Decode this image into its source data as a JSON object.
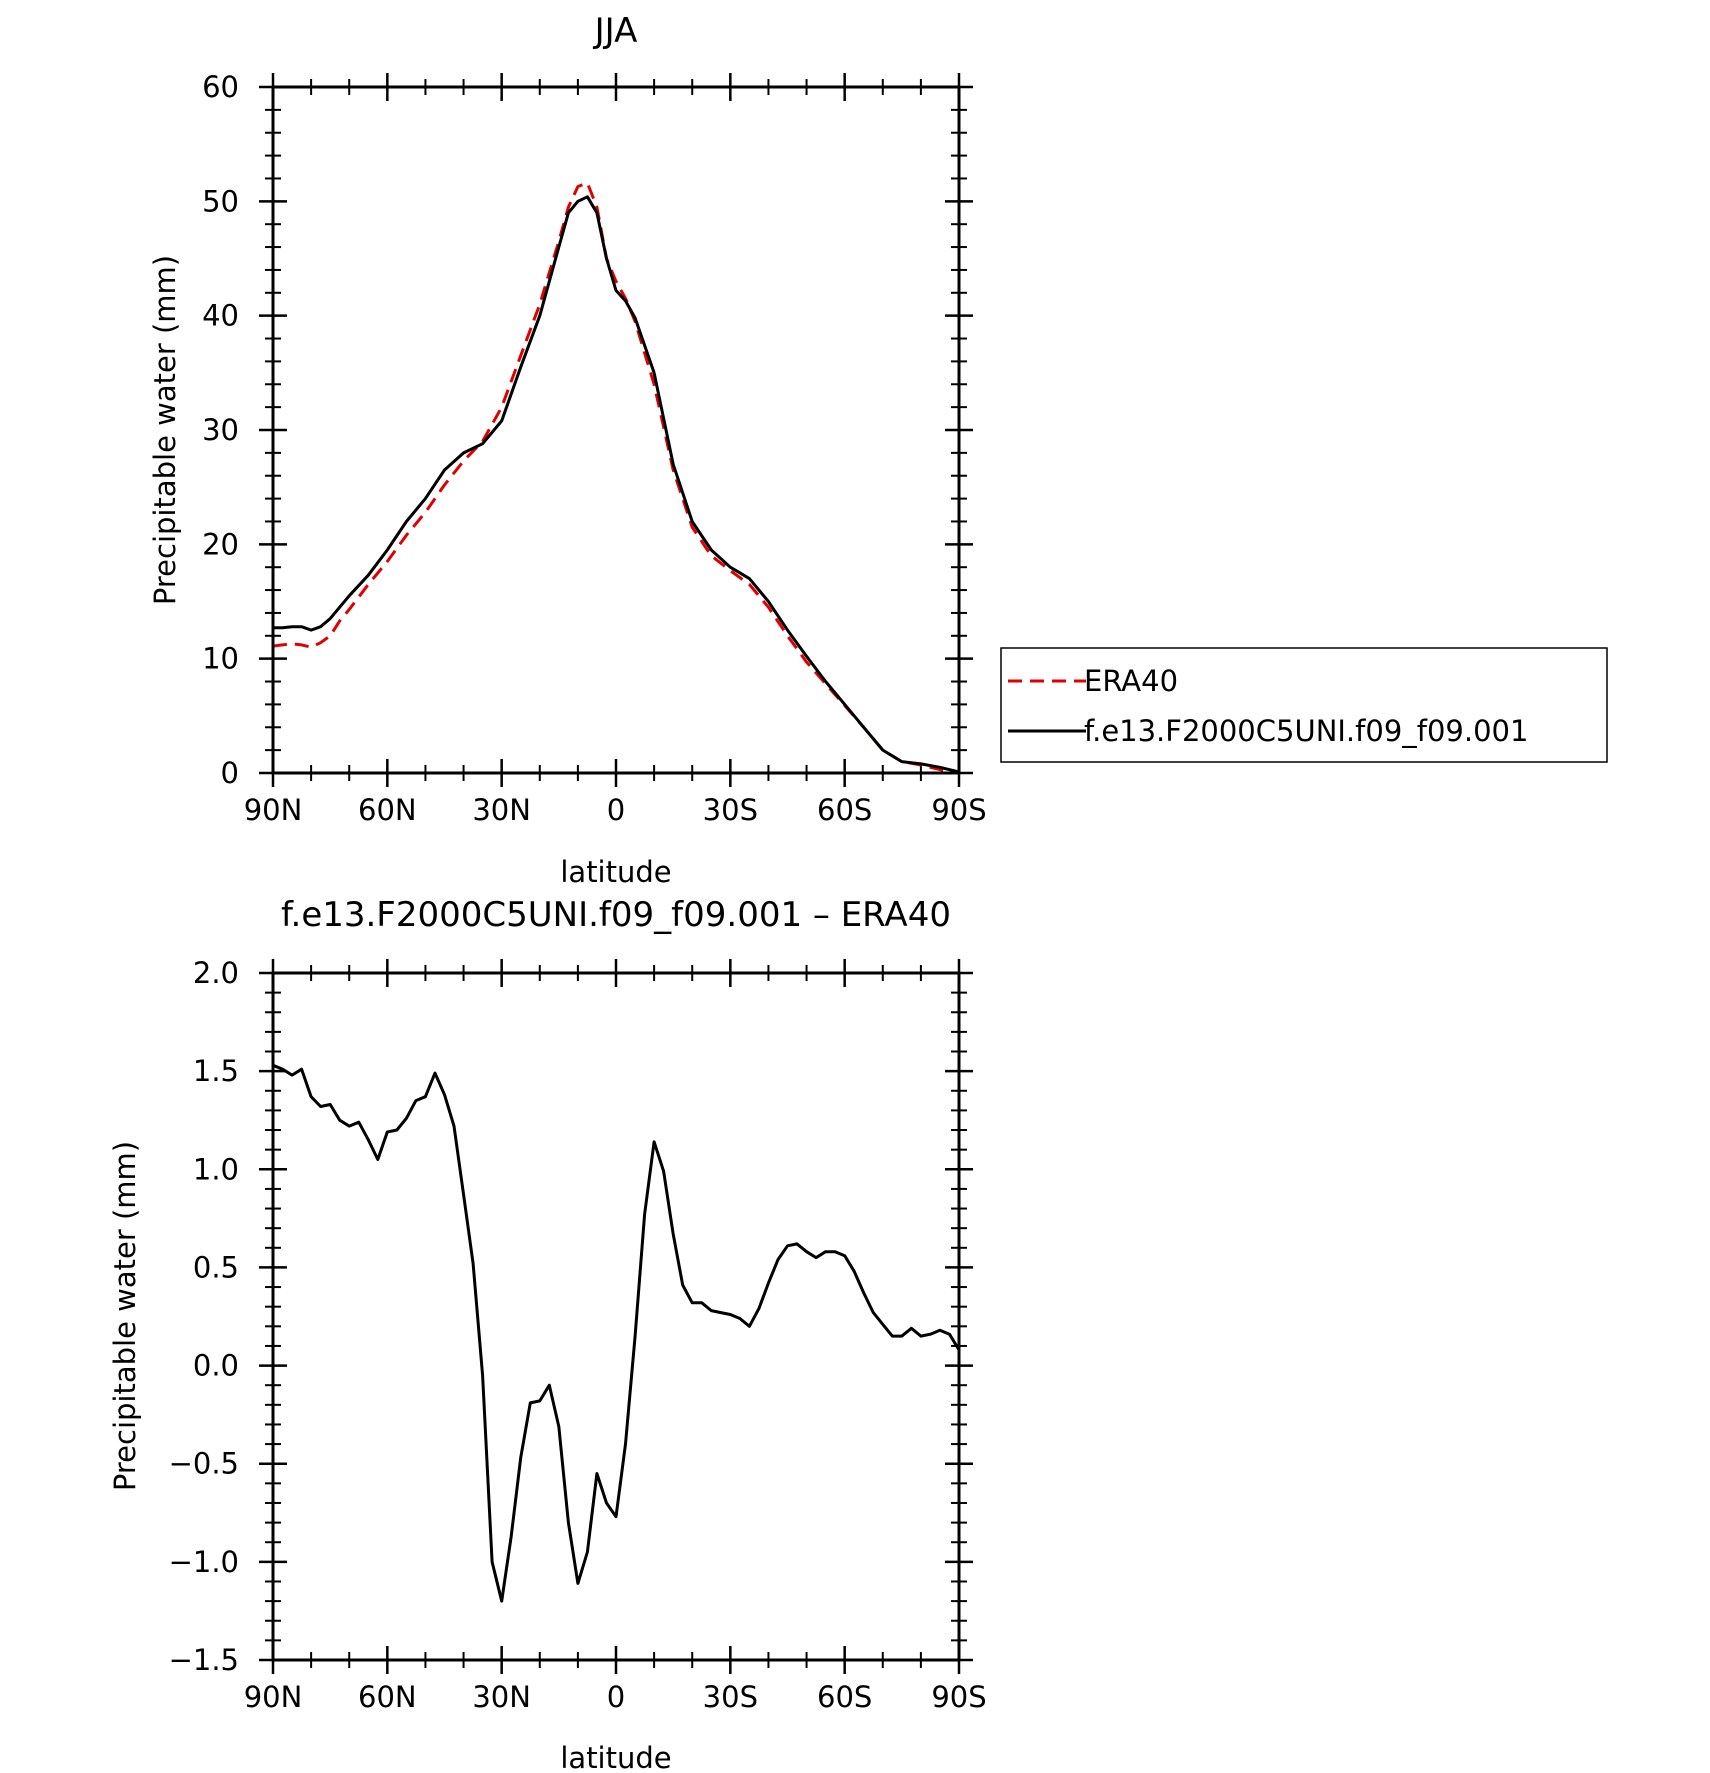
{
  "chart_data": [
    {
      "type": "line",
      "title": "JJA",
      "xlabel": "latitude",
      "ylabel": "Precipitable water (mm)",
      "xlim": [
        90,
        -90
      ],
      "ylim": [
        0,
        60
      ],
      "x_tick_values": [
        90,
        60,
        30,
        0,
        -30,
        -60,
        -90
      ],
      "x_tick_labels": [
        "90N",
        "60N",
        "30N",
        "0",
        "30S",
        "60S",
        "90S"
      ],
      "y_tick_values": [
        0,
        10,
        20,
        30,
        40,
        50,
        60
      ],
      "y_tick_labels": [
        "0",
        "10",
        "20",
        "30",
        "40",
        "50",
        "60"
      ],
      "legend": {
        "placement": "right",
        "entries": [
          "ERA40",
          "f.e13.F2000C5UNI.f09_f09.001"
        ]
      },
      "series": [
        {
          "name": "ERA40",
          "color": "#e00000",
          "dash": "dashed",
          "x": [
            90,
            87.5,
            85,
            82.5,
            80,
            77.5,
            75,
            72.5,
            70,
            65,
            60,
            55,
            50,
            45,
            40,
            35,
            30,
            25,
            20,
            15,
            12.5,
            10,
            7.5,
            5,
            2.5,
            0,
            -2.5,
            -5,
            -10,
            -15,
            -20,
            -25,
            -30,
            -35,
            -40,
            -45,
            -50,
            -55,
            -60,
            -65,
            -70,
            -75,
            -80,
            -85,
            -90
          ],
          "y": [
            11.1,
            11.2,
            11.3,
            11.2,
            11.0,
            11.4,
            12.0,
            13.3,
            14.3,
            16.5,
            18.5,
            20.8,
            22.8,
            25.2,
            27.3,
            29.0,
            32.0,
            36.5,
            41.0,
            46.5,
            49.5,
            51.3,
            51.6,
            49.5,
            45.0,
            43.0,
            41.5,
            39.5,
            34.0,
            26.5,
            21.5,
            19.0,
            17.7,
            16.5,
            14.5,
            12.0,
            9.7,
            7.8,
            5.9,
            4.0,
            2.0,
            1.0,
            0.7,
            0.3,
            0.0
          ]
        },
        {
          "name": "f.e13.F2000C5UNI.f09_f09.001",
          "color": "#000000",
          "dash": "solid",
          "x": [
            90,
            87.5,
            85,
            82.5,
            80,
            77.5,
            75,
            72.5,
            70,
            65,
            60,
            55,
            50,
            45,
            40,
            35,
            30,
            25,
            20,
            15,
            12.5,
            10,
            7.5,
            5,
            2.5,
            0,
            -2.5,
            -5,
            -10,
            -15,
            -20,
            -25,
            -30,
            -35,
            -40,
            -45,
            -50,
            -55,
            -60,
            -65,
            -70,
            -75,
            -80,
            -85,
            -90
          ],
          "y": [
            12.7,
            12.7,
            12.8,
            12.8,
            12.5,
            12.8,
            13.5,
            14.5,
            15.5,
            17.3,
            19.5,
            22.0,
            24.0,
            26.5,
            28.0,
            28.8,
            30.8,
            35.5,
            40.0,
            46.0,
            49.0,
            50.0,
            50.4,
            49.0,
            45.0,
            42.2,
            41.3,
            39.8,
            35.0,
            27.0,
            22.0,
            19.5,
            18.0,
            17.0,
            15.0,
            12.5,
            10.2,
            8.0,
            6.0,
            4.0,
            2.0,
            1.0,
            0.8,
            0.5,
            0.1
          ]
        }
      ]
    },
    {
      "type": "line",
      "title": "f.e13.F2000C5UNI.f09_f09.001 – ERA40",
      "xlabel": "latitude",
      "ylabel": "Precipitable water (mm)",
      "xlim": [
        90,
        -90
      ],
      "ylim": [
        -1.5,
        2.0
      ],
      "x_tick_values": [
        90,
        60,
        30,
        0,
        -30,
        -60,
        -90
      ],
      "x_tick_labels": [
        "90N",
        "60N",
        "30N",
        "0",
        "30S",
        "60S",
        "90S"
      ],
      "y_tick_values": [
        -1.5,
        -1.0,
        -0.5,
        0.0,
        0.5,
        1.0,
        1.5,
        2.0
      ],
      "y_tick_labels": [
        "−1.5",
        "−1.0",
        "−0.5",
        "0.0",
        "0.5",
        "1.0",
        "1.5",
        "2.0"
      ],
      "series": [
        {
          "color": "#000000",
          "dash": "solid",
          "x": [
            90,
            87.5,
            85,
            82.5,
            80,
            77.5,
            75,
            72.5,
            70,
            67.5,
            65,
            62.5,
            60,
            57.5,
            55,
            52.5,
            50,
            47.5,
            45,
            42.5,
            40,
            37.5,
            35,
            32.5,
            30,
            27.5,
            25,
            22.5,
            20,
            17.5,
            15,
            12.5,
            10,
            7.5,
            5,
            2.5,
            0,
            -2.5,
            -5,
            -7.5,
            -10,
            -12.5,
            -15,
            -17.5,
            -20,
            -22.5,
            -25,
            -27.5,
            -30,
            -32.5,
            -35,
            -37.5,
            -40,
            -42.5,
            -45,
            -47.5,
            -50,
            -52.5,
            -55,
            -57.5,
            -60,
            -62.5,
            -65,
            -67.5,
            -70,
            -72.5,
            -75,
            -77.5,
            -80,
            -82.5,
            -85,
            -87.5,
            -90
          ],
          "y": [
            1.53,
            1.51,
            1.48,
            1.51,
            1.37,
            1.32,
            1.33,
            1.25,
            1.22,
            1.24,
            1.15,
            1.05,
            1.19,
            1.2,
            1.26,
            1.35,
            1.37,
            1.49,
            1.38,
            1.22,
            0.87,
            0.52,
            -0.05,
            -1.0,
            -1.2,
            -0.87,
            -0.47,
            -0.19,
            -0.18,
            -0.1,
            -0.31,
            -0.8,
            -1.11,
            -0.95,
            -0.55,
            -0.7,
            -0.77,
            -0.4,
            0.15,
            0.77,
            1.14,
            0.99,
            0.67,
            0.41,
            0.32,
            0.32,
            0.28,
            0.27,
            0.26,
            0.24,
            0.2,
            0.29,
            0.42,
            0.54,
            0.61,
            0.62,
            0.58,
            0.55,
            0.58,
            0.58,
            0.56,
            0.48,
            0.37,
            0.27,
            0.21,
            0.15,
            0.15,
            0.19,
            0.15,
            0.16,
            0.18,
            0.16,
            0.08
          ]
        }
      ]
    }
  ]
}
